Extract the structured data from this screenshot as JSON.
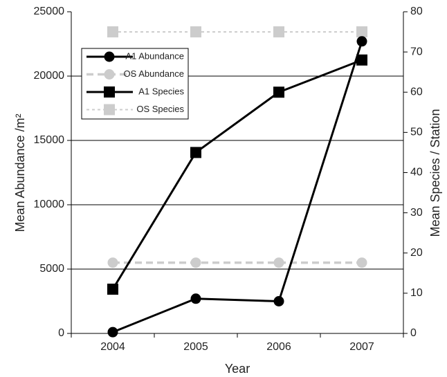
{
  "chart_data": {
    "type": "line",
    "x_label": "Year",
    "y_label": "Mean Abundance /m²",
    "y2_label": "Mean Species / Station",
    "categories": [
      "2004",
      "2005",
      "2006",
      "2007"
    ],
    "ylim": [
      0,
      25000
    ],
    "yticks": [
      0,
      5000,
      10000,
      15000,
      20000,
      25000
    ],
    "y2lim": [
      0,
      80
    ],
    "y2ticks": [
      0,
      10,
      20,
      30,
      40,
      50,
      60,
      70,
      80
    ],
    "grid": true,
    "legend": "upper left",
    "series": [
      {
        "name": "A1 Abundance",
        "color": "#000000",
        "marker": "circle",
        "dashed": false,
        "values": [
          100,
          2700,
          2500,
          22700
        ]
      },
      {
        "name": "OS Abundance",
        "color": "#cccccc",
        "marker": "circle",
        "dashed": true,
        "values": [
          5500,
          5500,
          5500,
          5500
        ]
      },
      {
        "name": "A1 Species",
        "color": "#000000",
        "marker": "square",
        "dashed": false,
        "axis": "y2",
        "values": [
          11,
          45,
          60,
          68
        ]
      },
      {
        "name": "OS Species",
        "color": "#cccccc",
        "marker": "square",
        "dashed": true,
        "axis": "y2",
        "values": [
          75,
          75,
          75,
          75
        ]
      }
    ]
  }
}
